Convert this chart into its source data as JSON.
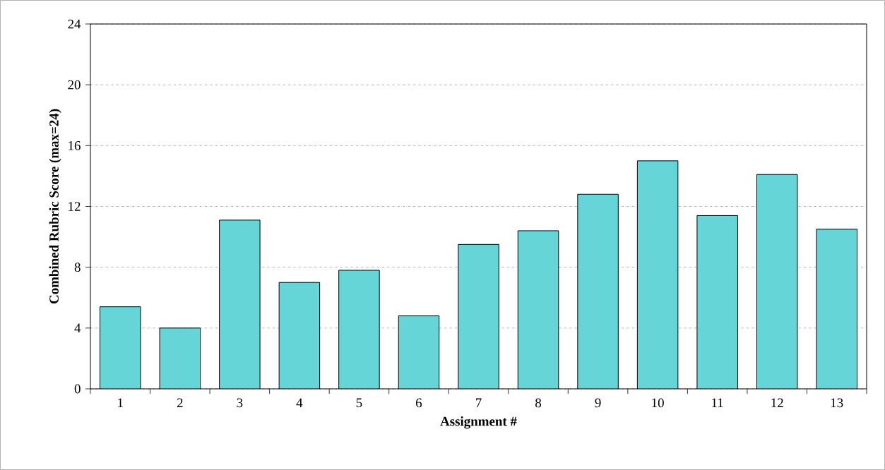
{
  "chart_data": {
    "type": "bar",
    "xlabel": "Assignment #",
    "ylabel": "Combined Rubric Score (max=24)",
    "categories": [
      "1",
      "2",
      "3",
      "4",
      "5",
      "6",
      "7",
      "8",
      "9",
      "10",
      "11",
      "12",
      "13"
    ],
    "values": [
      5.4,
      4.0,
      11.1,
      7.0,
      7.8,
      4.8,
      9.5,
      10.4,
      12.8,
      15.0,
      11.4,
      14.1,
      10.5
    ],
    "color": "#66d5d8",
    "ylim": [
      0,
      24
    ],
    "yticks": [
      0,
      4,
      8,
      12,
      16,
      20,
      24
    ],
    "grid": "y"
  }
}
